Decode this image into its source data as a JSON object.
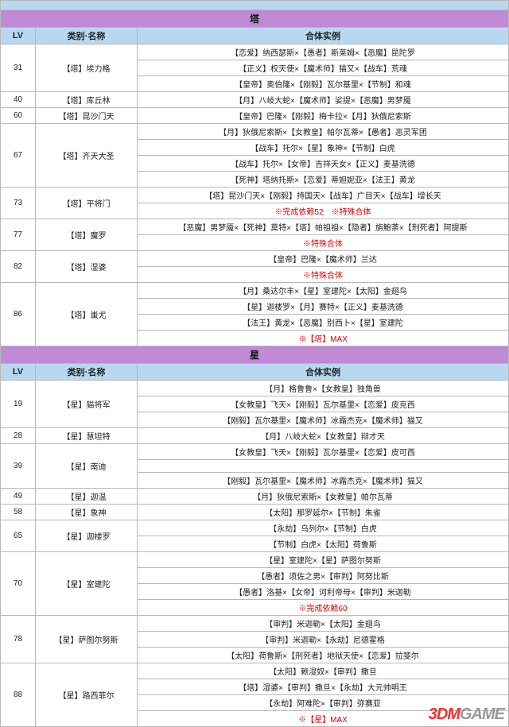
{
  "colhead": {
    "lv": "LV",
    "name": "类别·名称",
    "ex": "合体实例"
  },
  "watermark_a": "3DM",
  "watermark_b": "GAME",
  "s1": {
    "title": "塔",
    "rows": [
      {
        "lv": "31",
        "name": "【塔】埃力格",
        "ex": [
          "【恋爱】纳西瑟斯×【愚者】斯莱姆×【恶魔】昆陀罗",
          "【正义】权天使×【魔术师】猫又×【战车】荒魂",
          "【皇帝】奥伯隆×【刚毅】瓦尔基里×【节制】和魂"
        ]
      },
      {
        "lv": "40",
        "name": "【塔】库丘林",
        "ex": [
          "【月】八岐大蛇×【魔术师】娑提×【恶魔】男梦魇"
        ]
      },
      {
        "lv": "60",
        "name": "【塔】昆沙门天",
        "ex": [
          "【皇帝】巴隆×【刚毅】梅卡拉×【月】狄俄尼索斯"
        ]
      },
      {
        "lv": "67",
        "name": "【塔】齐天大圣",
        "ex": [
          "【月】狄俄尼索斯×【女教皇】帕尔瓦蒂×【愚者】恶灵军团",
          "【战车】托尔×【星】象神×【节制】白虎",
          "【战车】托尔×【女帝】吉祥天女×【正义】麦基洗德",
          "【死神】塔纳托斯×【恋爱】蒂妲妮亚×【法王】黄龙"
        ]
      },
      {
        "lv": "73",
        "name": "【塔】平将门",
        "ex": [
          "【塔】昆沙门天×【刚毅】持国天×【战车】广目天×【战车】增长天",
          "※完成依赖52　※特殊合体"
        ],
        "redIdx": 1
      },
      {
        "lv": "77",
        "name": "【塔】魔罗",
        "ex": [
          "【恶魔】男梦魇×【死神】莫特×【塔】帕祖祖×【隐者】旃鮑荼×【刑死者】阿提斯",
          "※特殊合体"
        ],
        "redIdx": 1
      },
      {
        "lv": "82",
        "name": "【塔】湿婆",
        "ex": [
          "【皇帝】巴隆×【魔术师】兰达",
          "※特殊合体"
        ],
        "redIdx": 1
      },
      {
        "lv": "86",
        "name": "【塔】蚩尤",
        "ex": [
          "【月】桑达尔丰×【星】室建陀×【太阳】金翅鸟",
          "【星】迦楼罗×【月】赛特×【正义】麦基洗德",
          "【法王】黄龙×【恶魔】别西卜×【星】室建陀",
          "※【塔】MAX"
        ],
        "redIdx": 3
      }
    ]
  },
  "s2": {
    "title": "星",
    "rows": [
      {
        "lv": "19",
        "name": "【星】猫将军",
        "ex": [
          "【月】格鲁鲁×【女教皇】独角兽",
          "【女教皇】飞天×【刚毅】瓦尔基里×【恋爱】皮克西",
          "【刚毅】瓦尔基里×【魔术师】冰霜杰克×【魔术师】猫又"
        ]
      },
      {
        "lv": "28",
        "name": "【星】慧坦特",
        "ex": [
          "【月】八岐大蛇×【女教皇】辩才天"
        ]
      },
      {
        "lv": "39",
        "name": "【星】南迪",
        "ex": [
          "【女教皇】飞天×【刚毅】瓦尔基里×【恋爱】皮可西",
          "",
          "【刚毅】瓦尔基里×【魔术师】冰霜杰克×【魔术师】猫又"
        ]
      },
      {
        "lv": "49",
        "name": "【星】迦温",
        "ex": [
          "【月】狄俄尼索斯×【女教皇】帕尔瓦蒂"
        ]
      },
      {
        "lv": "58",
        "name": "【星】象神",
        "ex": [
          "【太阳】那罗延尔×【节制】朱雀"
        ]
      },
      {
        "lv": "65",
        "name": "【星】迦楼罗",
        "ex": [
          "【永劫】乌列尔×【节制】白虎",
          "【节制】白虎×【太阳】荷鲁斯"
        ]
      },
      {
        "lv": "70",
        "name": "【星】室建陀",
        "ex": [
          "【星】室建陀×【星】萨图尔努斯",
          "【愚者】须佐之男×【审判】阿努比斯",
          "【愚者】洛基×【女帝】诃利帝母×【审判】米迦勒",
          "※完成依赖60"
        ],
        "redIdx": 3
      },
      {
        "lv": "78",
        "name": "【星】萨图尔努斯",
        "ex": [
          "【审判】米迦勒×【太阳】金翅鸟",
          "【审判】米迦勒×【永劫】尼德霍格",
          "【太阳】荷鲁斯×【刑死者】地狱天使×【恋爱】拉斐尔"
        ]
      },
      {
        "lv": "88",
        "name": "【星】路西菲尔",
        "ex": [
          "【太阳】赖湿奴×【审判】撒旦",
          "【塔】湿婆×【审判】撒旦×【永劫】大元帅明王",
          "【永劫】阿难陀×【审判】弥赛亚",
          "※【星】MAX"
        ],
        "redIdx": 3
      }
    ]
  }
}
